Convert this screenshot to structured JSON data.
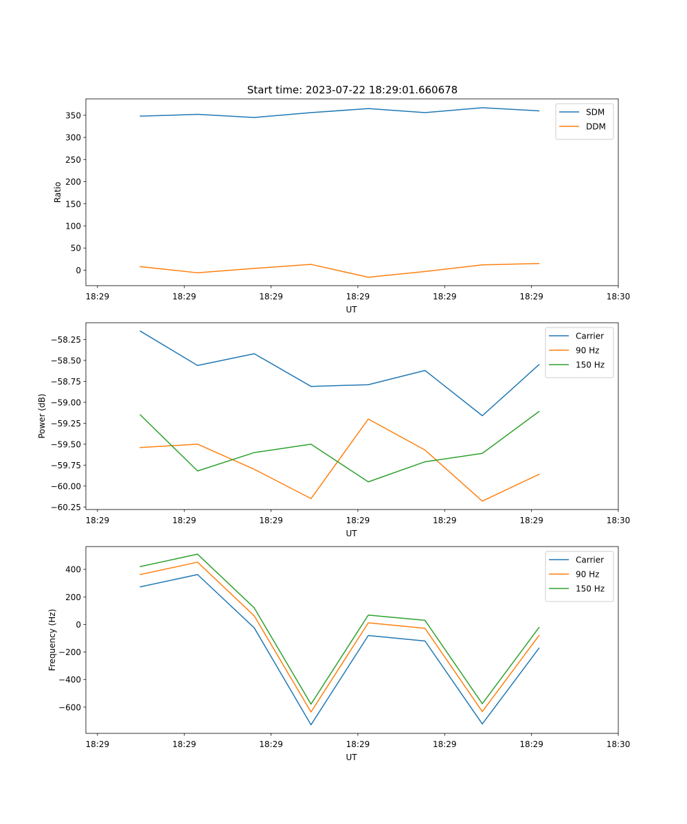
{
  "title": "Start time: 2023-07-22 18:29:01.660678",
  "colors": {
    "blue": "#1f77b4",
    "orange": "#ff7f0e",
    "green": "#2ca02c"
  },
  "chart_data": [
    {
      "id": "ratio",
      "type": "line",
      "title": "Start time: 2023-07-22 18:29:01.660678",
      "xlabel": "UT",
      "ylabel": "Ratio",
      "xlim": [
        0,
        9.2
      ],
      "ylim": [
        -35,
        387
      ],
      "xticks": [
        0.2,
        1.7,
        3.2,
        4.7,
        6.2,
        7.7,
        9.2
      ],
      "xtick_labels": [
        "18:29",
        "18:29",
        "18:29",
        "18:29",
        "18:29",
        "18:29",
        "18:30"
      ],
      "yticks": [
        0,
        50,
        100,
        150,
        200,
        250,
        300,
        350
      ],
      "ytick_labels": [
        "0",
        "50",
        "100",
        "150",
        "200",
        "250",
        "300",
        "350"
      ],
      "legend_position": "top-right",
      "x": [
        0.94,
        1.93,
        2.91,
        3.89,
        4.88,
        5.86,
        6.85,
        7.83
      ],
      "series": [
        {
          "name": "SDM",
          "color": "#1f77b4",
          "values": [
            348,
            352,
            345,
            356,
            365,
            356,
            367,
            360
          ]
        },
        {
          "name": "DDM",
          "color": "#ff7f0e",
          "values": [
            8,
            -6,
            4,
            13,
            -16,
            -3,
            12,
            15
          ]
        }
      ]
    },
    {
      "id": "power",
      "type": "line",
      "xlabel": "UT",
      "ylabel": "Power (dB)",
      "xlim": [
        0,
        9.2
      ],
      "ylim": [
        -60.28,
        -58.05
      ],
      "xticks": [
        0.2,
        1.7,
        3.2,
        4.7,
        6.2,
        7.7,
        9.2
      ],
      "xtick_labels": [
        "18:29",
        "18:29",
        "18:29",
        "18:29",
        "18:29",
        "18:29",
        "18:30"
      ],
      "yticks": [
        -60.25,
        -60.0,
        -59.75,
        -59.5,
        -59.25,
        -59.0,
        -58.75,
        -58.5,
        -58.25
      ],
      "ytick_labels": [
        "−60.25",
        "−60.00",
        "−59.75",
        "−59.50",
        "−59.25",
        "−59.00",
        "−58.75",
        "−58.50",
        "−58.25"
      ],
      "legend_position": "top-right",
      "x": [
        0.94,
        1.93,
        2.91,
        3.89,
        4.88,
        5.86,
        6.85,
        7.83
      ],
      "series": [
        {
          "name": "Carrier",
          "color": "#1f77b4",
          "values": [
            -58.15,
            -58.56,
            -58.42,
            -58.81,
            -58.79,
            -58.62,
            -59.16,
            -58.55
          ]
        },
        {
          "name": "90 Hz",
          "color": "#ff7f0e",
          "values": [
            -59.54,
            -59.5,
            -59.8,
            -60.15,
            -59.2,
            -59.57,
            -60.18,
            -59.86
          ]
        },
        {
          "name": "150 Hz",
          "color": "#2ca02c",
          "values": [
            -59.15,
            -59.82,
            -59.6,
            -59.5,
            -59.95,
            -59.71,
            -59.61,
            -59.11
          ]
        }
      ]
    },
    {
      "id": "frequency",
      "type": "line",
      "xlabel": "UT",
      "ylabel": "Frequency (Hz)",
      "xlim": [
        0,
        9.2
      ],
      "ylim": [
        -790,
        565
      ],
      "xticks": [
        0.2,
        1.7,
        3.2,
        4.7,
        6.2,
        7.7,
        9.2
      ],
      "xtick_labels": [
        "18:29",
        "18:29",
        "18:29",
        "18:29",
        "18:29",
        "18:29",
        "18:30"
      ],
      "yticks": [
        -600,
        -400,
        -200,
        0,
        200,
        400
      ],
      "ytick_labels": [
        "−600",
        "−400",
        "−200",
        "0",
        "200",
        "400"
      ],
      "legend_position": "top-right",
      "x": [
        0.94,
        1.93,
        2.91,
        3.89,
        4.88,
        5.86,
        6.85,
        7.83
      ],
      "series": [
        {
          "name": "Carrier",
          "color": "#1f77b4",
          "values": [
            273,
            362,
            -25,
            -728,
            -80,
            -120,
            -722,
            -172
          ]
        },
        {
          "name": "90 Hz",
          "color": "#ff7f0e",
          "values": [
            362,
            452,
            62,
            -635,
            12,
            -28,
            -632,
            -80
          ]
        },
        {
          "name": "150 Hz",
          "color": "#2ca02c",
          "values": [
            420,
            510,
            120,
            -578,
            68,
            30,
            -575,
            -22
          ]
        }
      ]
    }
  ]
}
